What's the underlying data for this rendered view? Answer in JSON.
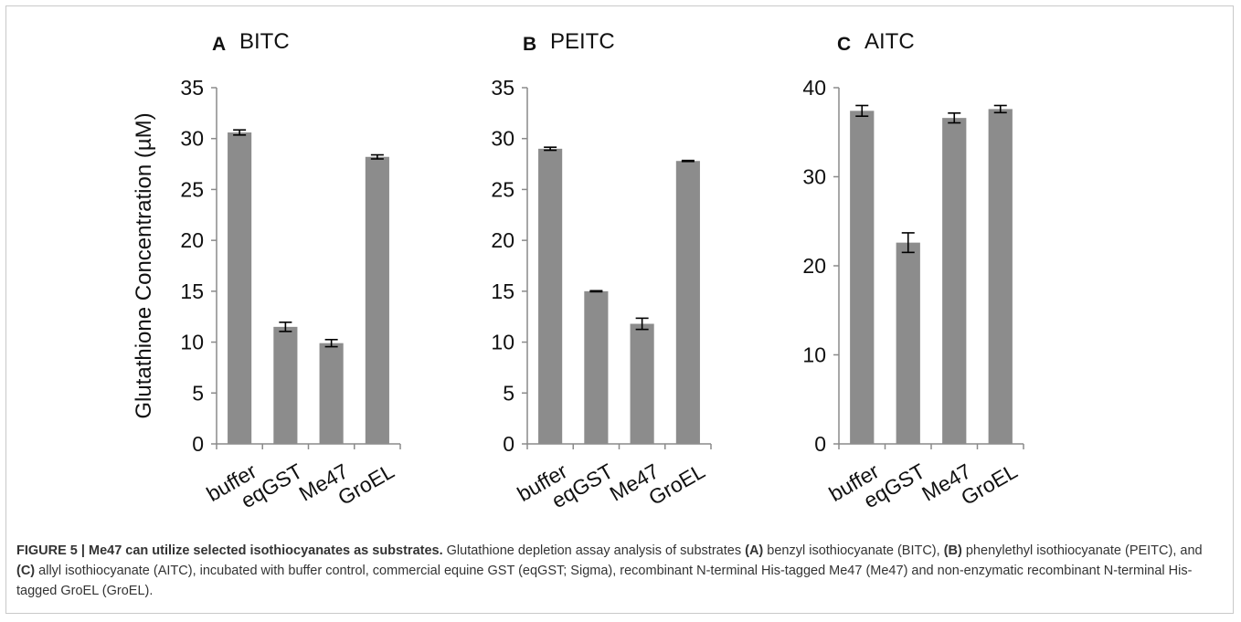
{
  "chart_data": [
    {
      "type": "bar",
      "panel_letter": "A",
      "title": "BITC",
      "ylabel": "Glutathione Concentration (µM)",
      "categories": [
        "buffer",
        "eqGST",
        "Me47",
        "GroEL"
      ],
      "values": [
        30.6,
        11.5,
        9.9,
        28.2
      ],
      "errors": [
        0.25,
        0.45,
        0.35,
        0.2
      ],
      "ylim": [
        0,
        35
      ],
      "yticks": [
        "0",
        "5",
        "10",
        "15",
        "20",
        "25",
        "30",
        "35"
      ],
      "grid": false,
      "bar_color": "#8c8c8c"
    },
    {
      "type": "bar",
      "panel_letter": "B",
      "title": "PEITC",
      "categories": [
        "buffer",
        "eqGST",
        "Me47",
        "GroEL"
      ],
      "values": [
        29.0,
        15.0,
        11.8,
        27.8
      ],
      "errors": [
        0.15,
        0.05,
        0.55,
        0.05
      ],
      "ylim": [
        0,
        35
      ],
      "yticks": [
        "0",
        "5",
        "10",
        "15",
        "20",
        "25",
        "30",
        "35"
      ],
      "grid": false,
      "bar_color": "#8c8c8c"
    },
    {
      "type": "bar",
      "panel_letter": "C",
      "title": "AITC",
      "categories": [
        "buffer",
        "eqGST",
        "Me47",
        "GroEL"
      ],
      "values": [
        37.4,
        22.6,
        36.6,
        37.6
      ],
      "errors": [
        0.6,
        1.1,
        0.55,
        0.4
      ],
      "ylim": [
        0,
        40
      ],
      "yticks": [
        "0",
        "10",
        "20",
        "30",
        "40"
      ],
      "grid": false,
      "bar_color": "#8c8c8c"
    }
  ],
  "caption": {
    "label": "FIGURE 5 | Me47 can utilize selected isothiocyanates as substrates.",
    "t1": " Glutathione depletion assay analysis of substrates ",
    "a": "(A)",
    "t2": " benzyl isothiocyanate (BITC), ",
    "b": "(B)",
    "t3": " phenylethyl isothiocyanate (PEITC), and ",
    "c": "(C)",
    "t4": " allyl isothiocyanate (AITC), incubated with buffer control, commercial equine GST (eqGST; Sigma), recombinant N-terminal His-tagged Me47 (Me47) and non-enzymatic recombinant N-terminal His-tagged GroEL (GroEL)."
  }
}
